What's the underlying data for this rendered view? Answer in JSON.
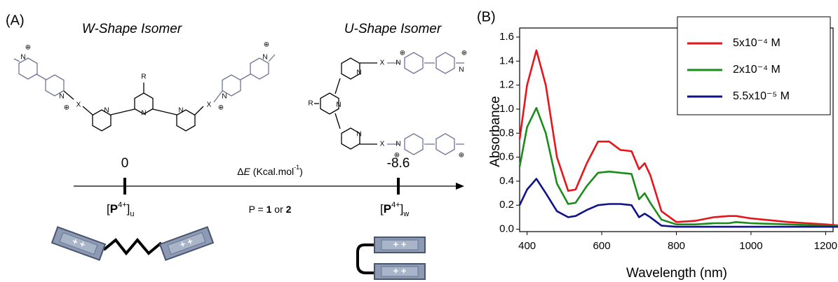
{
  "panel_a": {
    "label": "(A)",
    "w_isomer": {
      "title": "W-Shape Isomer",
      "atoms": [
        "R",
        "X",
        "X",
        "N",
        "N",
        "N",
        "N",
        "N",
        "N",
        "N",
        "⊕",
        "⊕",
        "⊕",
        "⊕"
      ]
    },
    "u_isomer": {
      "title": "U-Shape Isomer",
      "atoms": [
        "R",
        "X",
        "X",
        "N",
        "N",
        "N",
        "N",
        "N",
        "N",
        "⊕",
        "⊕",
        "⊕",
        "⊕"
      ]
    },
    "energy": {
      "symbol": "Δ",
      "variable": "E",
      "unit": " (Kcal.mol",
      "exponent": "-1",
      "close": ")"
    },
    "states": [
      {
        "value": 0,
        "species": {
          "open": "[",
          "letter": "P",
          "charge": "4+",
          "close": "]",
          "sub": "u"
        }
      },
      {
        "value": -8.6,
        "species": {
          "open": "[",
          "letter": "P",
          "charge": "4+",
          "close": "]",
          "sub": "w"
        }
      }
    ],
    "p_note": {
      "prefix": "P = ",
      "first": "1",
      "middle": " or ",
      "second": "2"
    },
    "cartoon_charges": [
      "+ +",
      "+ +",
      "+ +",
      "+ +"
    ]
  },
  "panel_b": {
    "label": "(B)"
  },
  "chart_data": {
    "type": "line",
    "xlabel": "Wavelength (nm)",
    "ylabel": "Absorbance",
    "x": [
      380,
      400,
      425,
      450,
      480,
      510,
      530,
      560,
      590,
      620,
      650,
      680,
      700,
      715,
      730,
      760,
      800,
      850,
      900,
      940,
      960,
      1000,
      1100,
      1200,
      1240
    ],
    "series": [
      {
        "name": "5x10⁻⁴ M",
        "color": "#e8141b",
        "values": [
          0.75,
          1.2,
          1.49,
          1.2,
          0.6,
          0.32,
          0.33,
          0.55,
          0.73,
          0.73,
          0.66,
          0.65,
          0.5,
          0.55,
          0.45,
          0.15,
          0.06,
          0.07,
          0.1,
          0.11,
          0.11,
          0.09,
          0.06,
          0.04,
          0.03
        ]
      },
      {
        "name": "2x10⁻⁴ M",
        "color": "#1a8c1a",
        "values": [
          0.52,
          0.85,
          1.01,
          0.8,
          0.38,
          0.21,
          0.22,
          0.36,
          0.47,
          0.48,
          0.47,
          0.46,
          0.25,
          0.3,
          0.22,
          0.08,
          0.04,
          0.04,
          0.05,
          0.05,
          0.06,
          0.05,
          0.04,
          0.03,
          0.03
        ]
      },
      {
        "name": "5.5x10⁻⁵ M",
        "color": "#10128a",
        "values": [
          0.2,
          0.33,
          0.42,
          0.3,
          0.15,
          0.1,
          0.11,
          0.16,
          0.2,
          0.21,
          0.21,
          0.2,
          0.1,
          0.13,
          0.1,
          0.03,
          0.02,
          0.02,
          0.02,
          0.02,
          0.02,
          0.02,
          0.02,
          0.02,
          0.02
        ]
      }
    ],
    "xlim": [
      380,
      1220
    ],
    "ylim": [
      -0.02,
      1.6
    ],
    "xticks": [
      400,
      600,
      800,
      1000,
      1200
    ],
    "yticks": [
      {
        "value": 0,
        "label": "0.0"
      },
      0.2,
      0.4,
      0.6,
      0.8,
      {
        "value": 1,
        "label": "1.0"
      },
      1.2,
      1.4,
      1.6
    ],
    "legend": "upper right"
  }
}
